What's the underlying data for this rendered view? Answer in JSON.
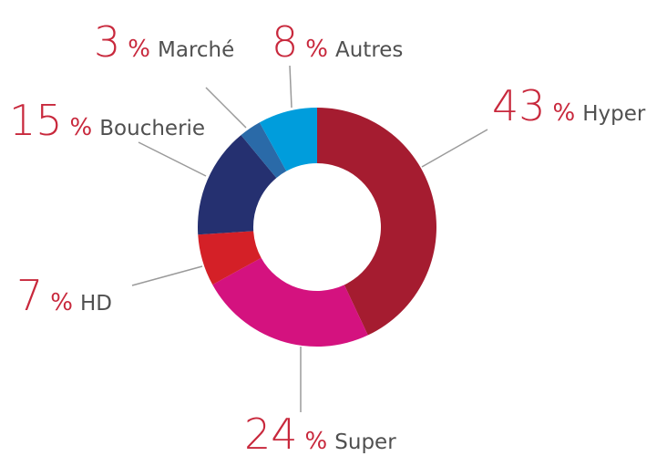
{
  "chart_data": {
    "type": "donut",
    "categories": [
      "Hyper",
      "Super",
      "HD",
      "Boucherie",
      "Marché",
      "Autres"
    ],
    "values": [
      43,
      24,
      7,
      15,
      3,
      8
    ],
    "unit": "%",
    "colors": [
      "#a51c30",
      "#d4127f",
      "#d42027",
      "#253070",
      "#2a6aa8",
      "#009ddc"
    ]
  }
}
